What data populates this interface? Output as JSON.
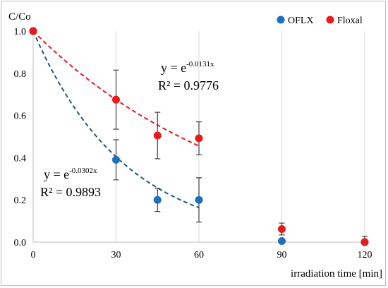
{
  "chart_data": {
    "type": "scatter",
    "ylabel": "C/Co",
    "xlabel": "irradiation time [min]",
    "xlim": [
      0,
      120
    ],
    "ylim": [
      0,
      1.0
    ],
    "xticks": [
      0,
      30,
      60,
      90,
      120
    ],
    "yticks": [
      0.0,
      0.2,
      0.4,
      0.6,
      0.8,
      1.0
    ],
    "x_tick_labels": [
      "0",
      "30",
      "60",
      "90",
      "120"
    ],
    "y_tick_labels": [
      "0.0",
      "0.2",
      "0.4",
      "0.6",
      "0.8",
      "1.0"
    ],
    "grid": "vertical",
    "legend_position": "top-right",
    "series": [
      {
        "name": "OFLX",
        "color": "#1f6fbf",
        "x": [
          0,
          30,
          45,
          60,
          90,
          120
        ],
        "y": [
          1.0,
          0.39,
          0.2,
          0.2,
          0.005,
          0.0
        ],
        "err": [
          0,
          0.095,
          0.055,
          0.105,
          0.01,
          0.0
        ],
        "fit": {
          "k": 0.0302,
          "xmax": 60,
          "color": "#1a5a86",
          "eq_base": "y = e",
          "eq_exp": "-0.0302x",
          "r2": "R² = 0.9893"
        }
      },
      {
        "name": "Floxal",
        "color": "#e8191c",
        "x": [
          0,
          30,
          45,
          60,
          90,
          120
        ],
        "y": [
          1.0,
          0.675,
          0.505,
          0.492,
          0.062,
          0.0
        ],
        "err": [
          0,
          0.14,
          0.11,
          0.078,
          0.028,
          0.028
        ],
        "fit": {
          "k": 0.0131,
          "xmax": 60,
          "color": "#e8191c",
          "eq_base": "y = e",
          "eq_exp": "-0.0131x",
          "r2": "R² = 0.9776"
        }
      }
    ]
  }
}
